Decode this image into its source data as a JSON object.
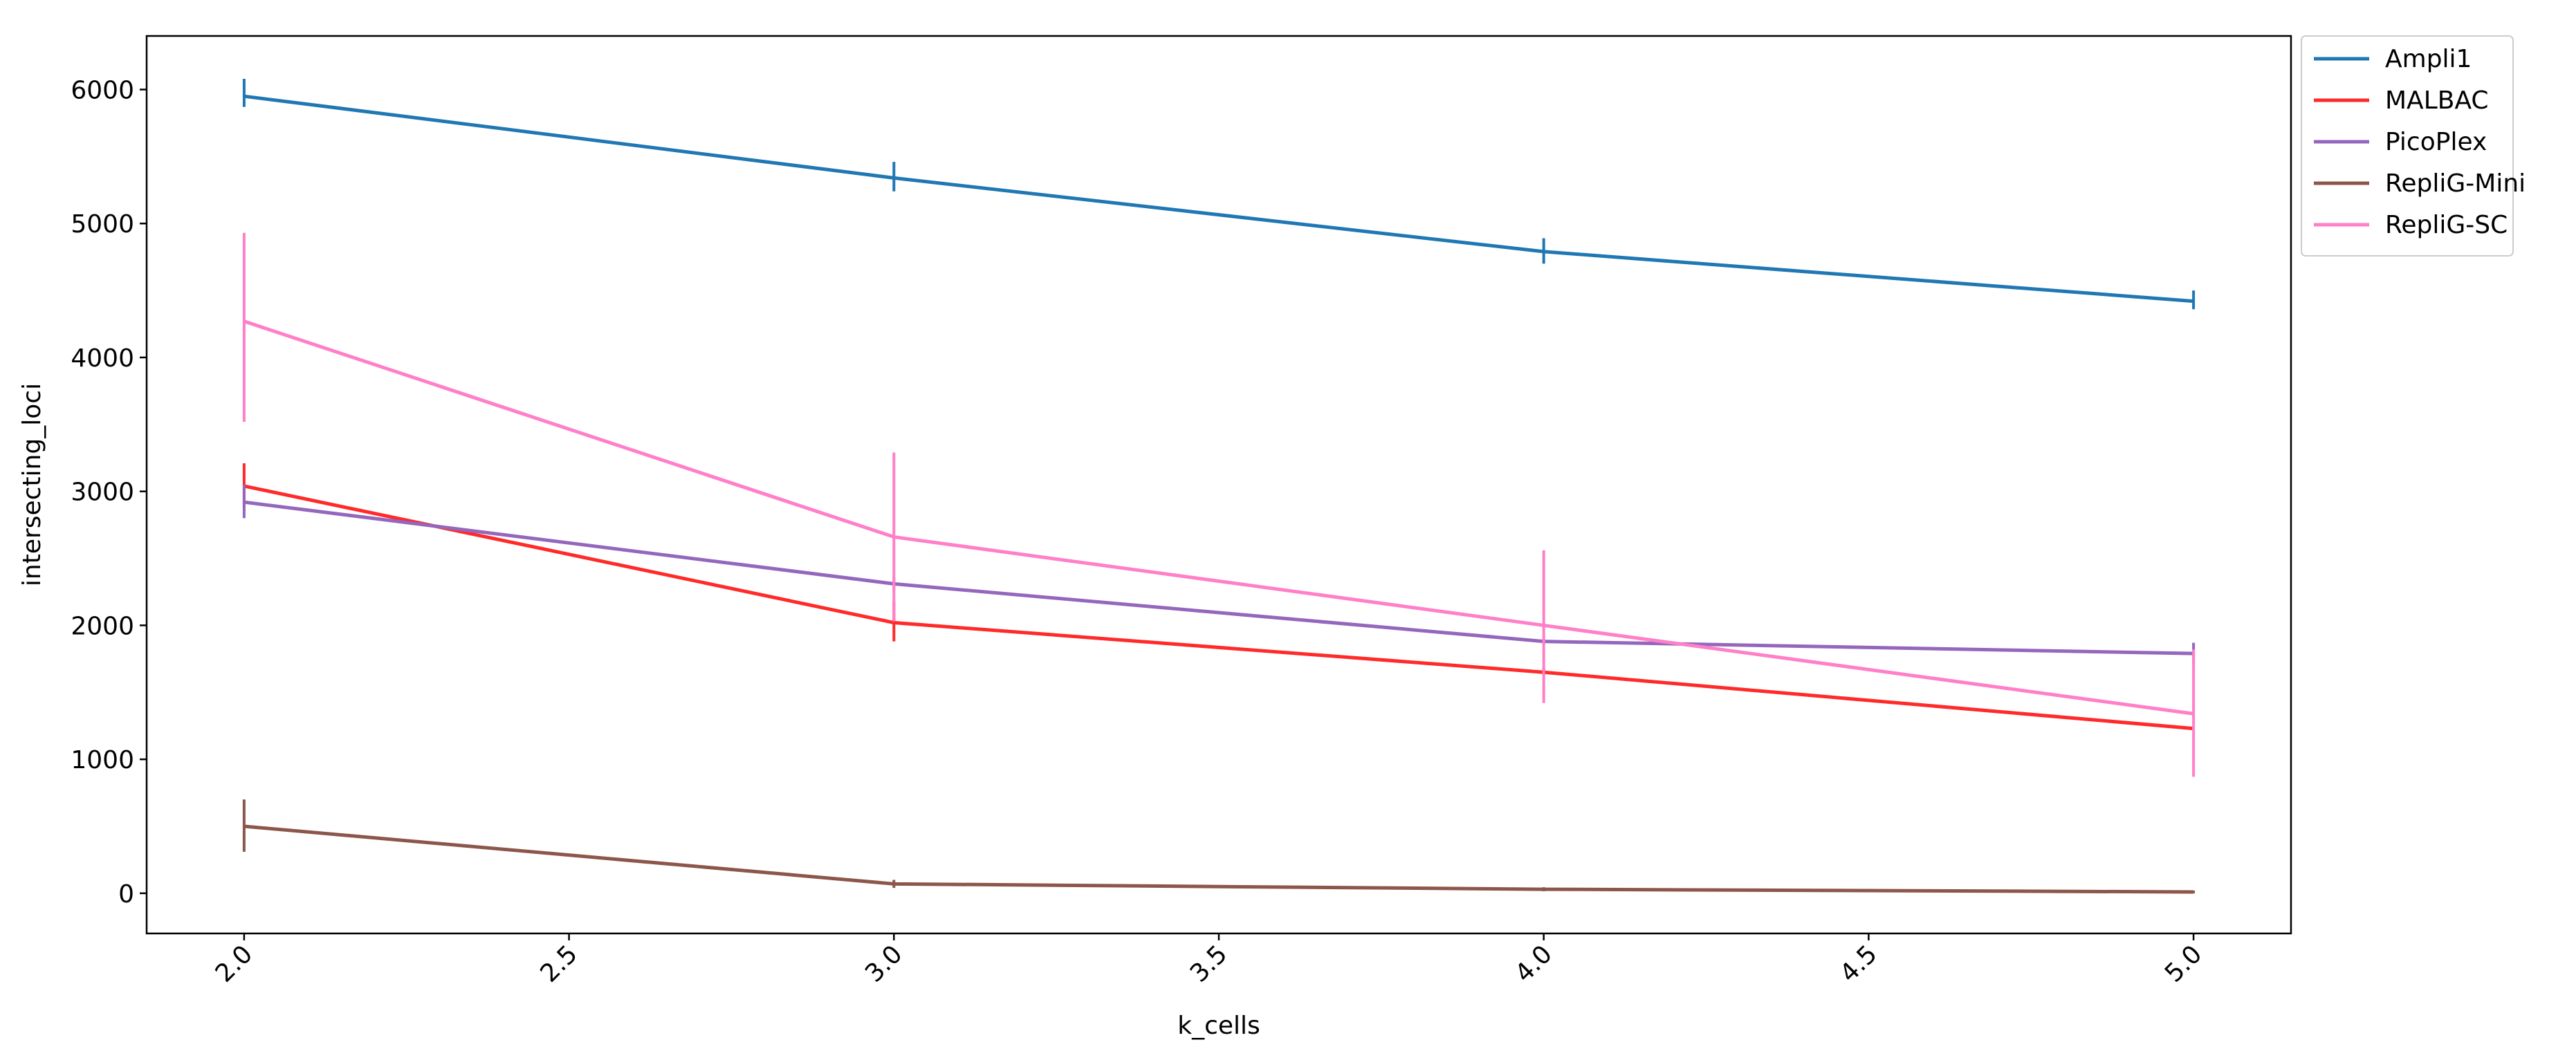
{
  "chart_data": {
    "type": "line",
    "title": "",
    "xlabel": "k_cells",
    "ylabel": "intersecting_loci",
    "xlim": [
      1.85,
      5.15
    ],
    "ylim": [
      -300,
      6400
    ],
    "x_ticks": [
      2.0,
      2.5,
      3.0,
      3.5,
      4.0,
      4.5,
      5.0
    ],
    "x_tick_labels": [
      "2.0",
      "2.5",
      "3.0",
      "3.5",
      "4.0",
      "4.5",
      "5.0"
    ],
    "y_ticks": [
      0,
      1000,
      2000,
      3000,
      4000,
      5000,
      6000
    ],
    "y_tick_labels": [
      "0",
      "1000",
      "2000",
      "3000",
      "4000",
      "5000",
      "6000"
    ],
    "grid": false,
    "legend_position": "outside-top-right",
    "x": [
      2,
      3,
      4,
      5
    ],
    "series": [
      {
        "name": "Ampli1",
        "color": "#1f77b4",
        "values": [
          5950,
          5340,
          4790,
          4420
        ],
        "err_low": [
          5870,
          5240,
          4700,
          4360
        ],
        "err_high": [
          6080,
          5460,
          4890,
          4500
        ]
      },
      {
        "name": "MALBAC",
        "color": "#ff2a2a",
        "values": [
          3040,
          2020,
          1650,
          1230
        ],
        "err_low": [
          2880,
          1880,
          1630,
          1230
        ],
        "err_high": [
          3210,
          2180,
          1680,
          1230
        ]
      },
      {
        "name": "PicoPlex",
        "color": "#9467bd",
        "values": [
          2920,
          2310,
          1880,
          1790
        ],
        "err_low": [
          2800,
          2260,
          1860,
          1710
        ],
        "err_high": [
          3050,
          2360,
          1900,
          1870
        ]
      },
      {
        "name": "RepliG-Mini",
        "color": "#8c564b",
        "values": [
          500,
          70,
          30,
          10
        ],
        "err_low": [
          310,
          40,
          15,
          0
        ],
        "err_high": [
          700,
          100,
          45,
          20
        ]
      },
      {
        "name": "RepliG-SC",
        "color": "#ff7fc8",
        "values": [
          4270,
          2660,
          2000,
          1340
        ],
        "err_low": [
          3520,
          2030,
          1420,
          870
        ],
        "err_high": [
          4930,
          3290,
          2560,
          1820
        ]
      }
    ]
  }
}
